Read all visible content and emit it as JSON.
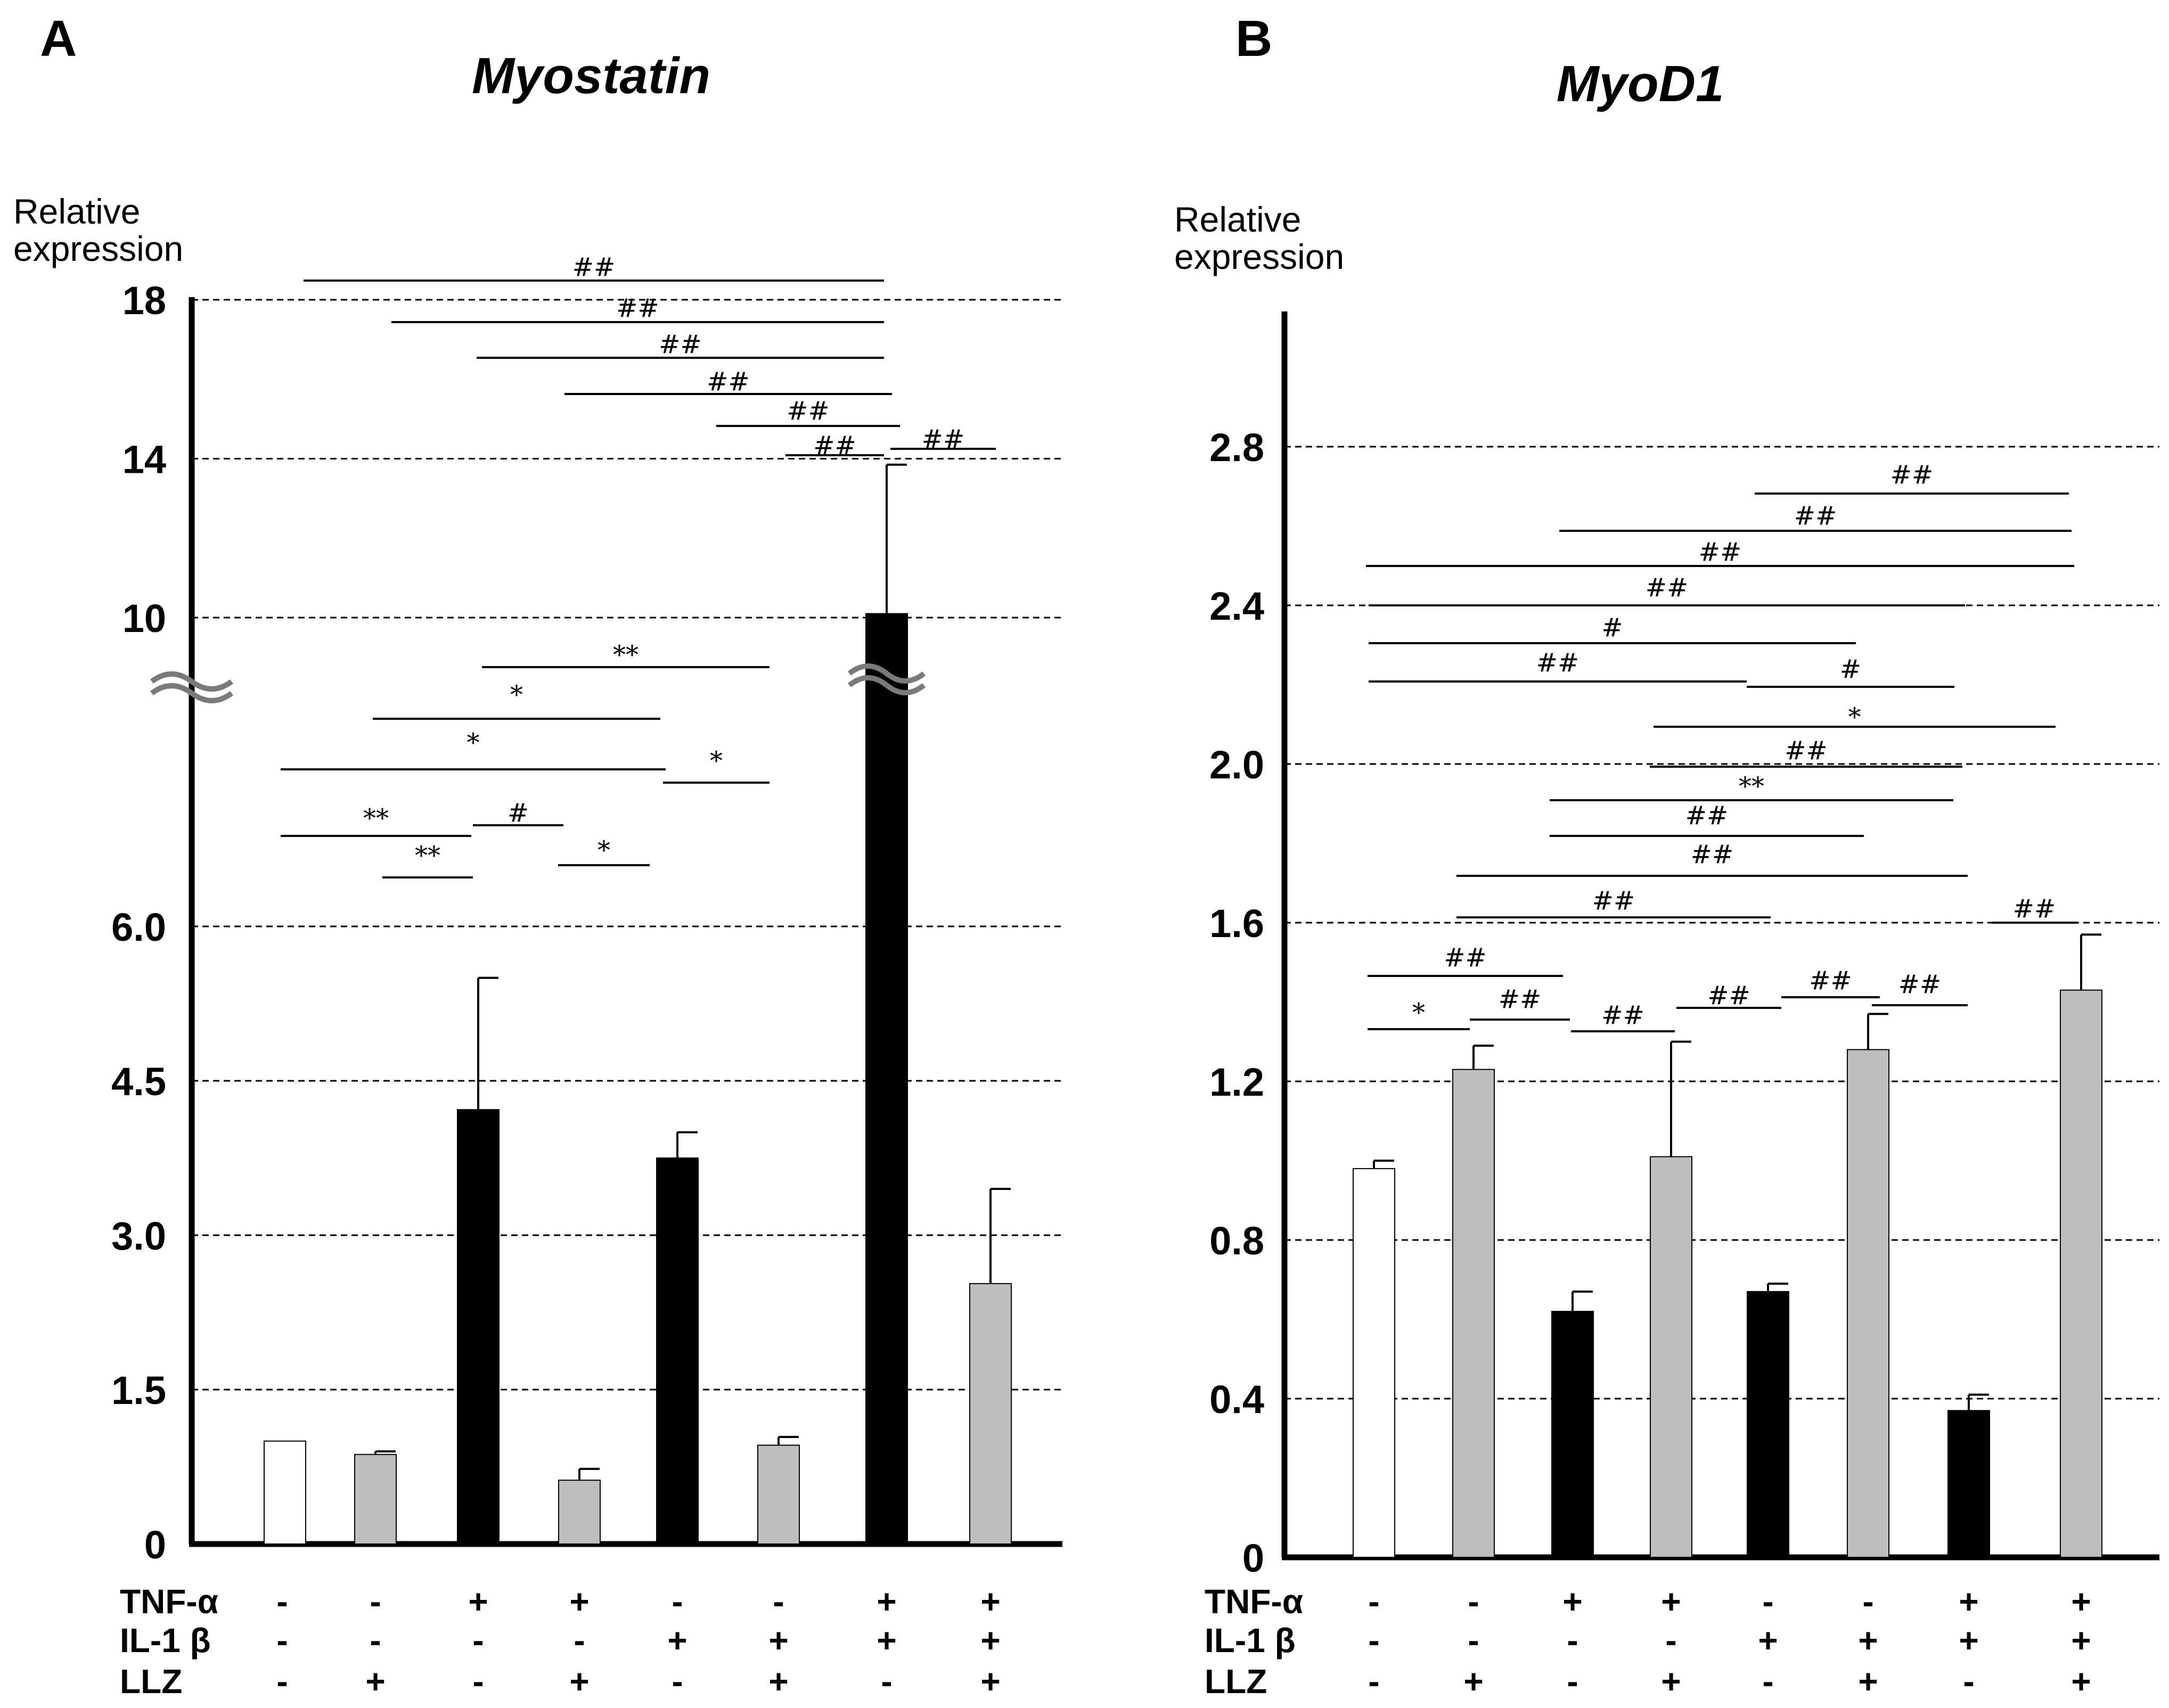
{
  "chart_data": [
    {
      "panel": "A",
      "type": "bar",
      "title": "Myostatin",
      "ylabel": [
        "Relative",
        "expression"
      ],
      "yticks": [
        "0",
        "1.5",
        "3.0",
        "4.5",
        "6.0",
        "10",
        "14",
        "18"
      ],
      "axis_break": {
        "lower": [
          0,
          7.5
        ],
        "upper": [
          10,
          18
        ]
      },
      "conditions": {
        "TNF-α": [
          "-",
          "-",
          "+",
          "+",
          "-",
          "-",
          "+",
          "+"
        ],
        "IL-1 β": [
          "-",
          "-",
          "-",
          "-",
          "+",
          "+",
          "+",
          "+"
        ],
        "LLZ": [
          "-",
          "+",
          "-",
          "+",
          "-",
          "+",
          "-",
          "+"
        ]
      },
      "condition_labels": [
        "TNF-α",
        "IL-1 β",
        "LLZ"
      ],
      "values": [
        1.0,
        0.87,
        4.22,
        0.62,
        3.75,
        0.96,
        10.1,
        2.53
      ],
      "errors": [
        0.0,
        0.03,
        1.28,
        0.11,
        0.25,
        0.08,
        3.75,
        0.92
      ],
      "bar_colors": [
        "#ffffff",
        "#bebebe",
        "#000000",
        "#bebebe",
        "#000000",
        "#bebebe",
        "#000000",
        "#bebebe"
      ],
      "significance": [
        {
          "from": 1,
          "to": 7,
          "label": "##"
        },
        {
          "from": 2,
          "to": 7,
          "label": "##"
        },
        {
          "from": 3,
          "to": 7,
          "label": "##"
        },
        {
          "from": 4,
          "to": 7,
          "label": "##"
        },
        {
          "from": 5,
          "to": 7,
          "label": "##"
        },
        {
          "from": 6,
          "to": 7,
          "label": "##"
        },
        {
          "from": 7,
          "to": 8,
          "label": "##"
        },
        {
          "from": 3,
          "to": 5,
          "label": "**"
        },
        {
          "from": 2,
          "to": 4,
          "label": "*"
        },
        {
          "from": 1,
          "to": 4,
          "label": "*"
        },
        {
          "from": 4,
          "to": 5,
          "label": "*"
        },
        {
          "from": 1,
          "to": 2,
          "label": "**"
        },
        {
          "from": 2,
          "to": 2,
          "label": "**"
        },
        {
          "from": 3,
          "to": 3,
          "label": "#"
        },
        {
          "from": 4,
          "to": 4,
          "label": "*"
        }
      ]
    },
    {
      "panel": "B",
      "type": "bar",
      "title": "MyoD1",
      "ylabel": [
        "Relative",
        "expression"
      ],
      "yticks": [
        "0",
        "0.4",
        "0.8",
        "1.2",
        "1.6",
        "2.0",
        "2.4",
        "2.8"
      ],
      "ylim": [
        0,
        3.1
      ],
      "conditions": {
        "TNF-α": [
          "-",
          "-",
          "+",
          "+",
          "-",
          "-",
          "+",
          "+"
        ],
        "IL-1 β": [
          "-",
          "-",
          "-",
          "-",
          "+",
          "+",
          "+",
          "+"
        ],
        "LLZ": [
          "-",
          "+",
          "-",
          "+",
          "-",
          "+",
          "-",
          "+"
        ]
      },
      "condition_labels": [
        "TNF-α",
        "IL-1 β",
        "LLZ"
      ],
      "values": [
        0.98,
        1.23,
        0.62,
        1.01,
        0.67,
        1.28,
        0.37,
        1.43
      ],
      "errors": [
        0.02,
        0.06,
        0.05,
        0.29,
        0.02,
        0.09,
        0.04,
        0.14
      ],
      "bar_colors": [
        "#ffffff",
        "#bebebe",
        "#000000",
        "#bebebe",
        "#000000",
        "#bebebe",
        "#000000",
        "#bebebe"
      ],
      "significance": [
        {
          "from": 6,
          "to": 8,
          "label": "##"
        },
        {
          "from": 4,
          "to": 8,
          "label": "##"
        },
        {
          "from": 1,
          "to": 8,
          "label": "##"
        },
        {
          "from": 1,
          "to": 7,
          "label": "##"
        },
        {
          "from": 1,
          "to": 6,
          "label": "#"
        },
        {
          "from": 1,
          "to": 5,
          "label": "##"
        },
        {
          "from": 5,
          "to": 7,
          "label": "#"
        },
        {
          "from": 4,
          "to": 8,
          "label": "*"
        },
        {
          "from": 4,
          "to": 7,
          "label": "##"
        },
        {
          "from": 3,
          "to": 7,
          "label": "**"
        },
        {
          "from": 3,
          "to": 6,
          "label": "##"
        },
        {
          "from": 2,
          "to": 7,
          "label": "##"
        },
        {
          "from": 2,
          "to": 5,
          "label": "##"
        },
        {
          "from": 8,
          "to": 8,
          "label": "##"
        },
        {
          "from": 1,
          "to": 2,
          "label": "##"
        },
        {
          "from": 3,
          "to": 4,
          "label": "##"
        },
        {
          "from": 6,
          "to": 6,
          "label": "##"
        },
        {
          "from": 7,
          "to": 7,
          "label": "##"
        },
        {
          "from": 1,
          "to": 1,
          "label": "*"
        },
        {
          "from": 2,
          "to": 2,
          "label": "##"
        },
        {
          "from": 4,
          "to": 4,
          "label": "##"
        }
      ]
    }
  ]
}
